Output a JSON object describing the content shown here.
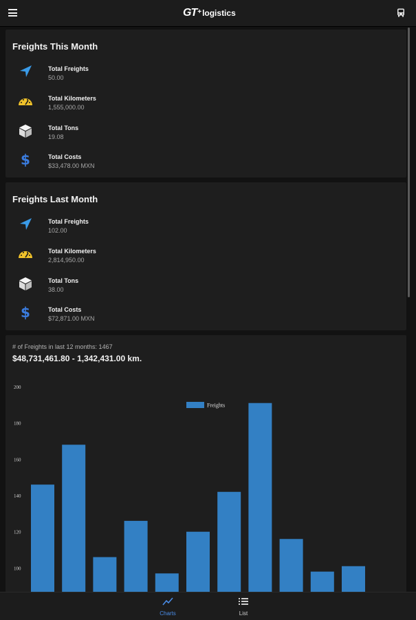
{
  "header": {
    "logo_gt": "GT",
    "logo_plus": "+",
    "logo_text": "logistics",
    "menu_icon": "hamburger-icon",
    "right_icon": "bus-icon"
  },
  "this_month": {
    "title": "Freights This Month",
    "items": [
      {
        "label": "Total Freights",
        "value": "50.00",
        "icon": "navigation-arrow-icon"
      },
      {
        "label": "Total Kilometers",
        "value": "1,555,000.00",
        "icon": "speedometer-icon"
      },
      {
        "label": "Total Tons",
        "value": "19.08",
        "icon": "cube-icon"
      },
      {
        "label": "Total Costs",
        "value": "$33,478.00 MXN",
        "icon": "dollar-icon"
      }
    ]
  },
  "last_month": {
    "title": "Freights Last Month",
    "items": [
      {
        "label": "Total Freights",
        "value": "102.00",
        "icon": "navigation-arrow-icon"
      },
      {
        "label": "Total Kilometers",
        "value": "2,814,950.00",
        "icon": "speedometer-icon"
      },
      {
        "label": "Total Tons",
        "value": "38.00",
        "icon": "cube-icon"
      },
      {
        "label": "Total Costs",
        "value": "$72,871.00 MXN",
        "icon": "dollar-icon"
      }
    ]
  },
  "yearly": {
    "label": "# of Freights in last 12 months: 1467",
    "total": "$48,731,461.80 - 1,342,431.00 km."
  },
  "chart_data": {
    "type": "bar",
    "series": [
      {
        "name": "Freights",
        "values": [
          146,
          168,
          106,
          126,
          97,
          120,
          142,
          191,
          116,
          98,
          101
        ]
      }
    ],
    "y_ticks": [
      200,
      180,
      160,
      140,
      120,
      100
    ],
    "ylim": [
      88,
      200
    ],
    "grid": false,
    "legend": "top-center",
    "color": "#3380c4"
  },
  "bottom_nav": {
    "tabs": [
      {
        "label": "Charts",
        "icon": "line-chart-icon",
        "active": true
      },
      {
        "label": "List",
        "icon": "list-icon",
        "active": false
      }
    ],
    "active_color": "#4a8de8"
  }
}
